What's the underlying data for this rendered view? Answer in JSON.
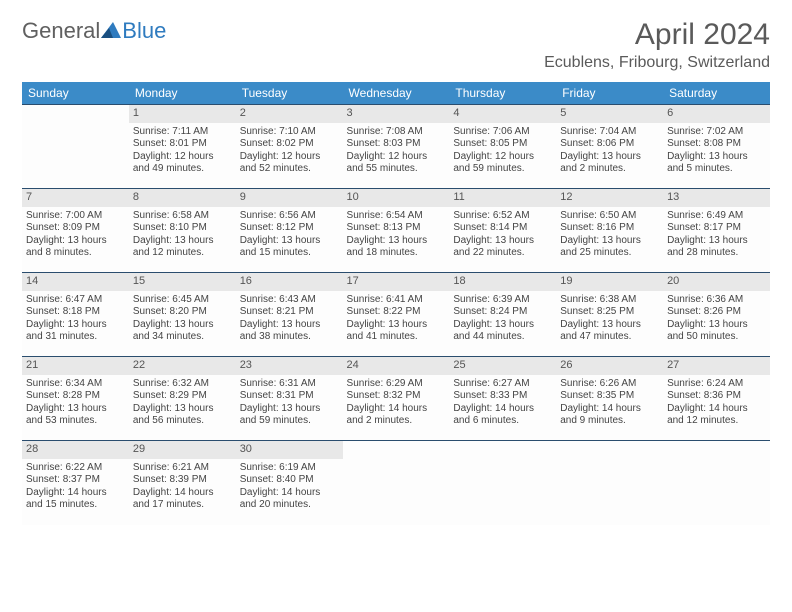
{
  "brand": {
    "general": "General",
    "blue": "Blue"
  },
  "title": "April 2024",
  "location": "Ecublens, Fribourg, Switzerland",
  "colors": {
    "header_bg": "#3b8bc8",
    "header_text": "#ffffff",
    "border": "#2a4d6e",
    "daynum_bg": "#e8e8e8",
    "text": "#444444",
    "logo_gray": "#606060",
    "logo_blue": "#2f7bbf"
  },
  "day_headers": [
    "Sunday",
    "Monday",
    "Tuesday",
    "Wednesday",
    "Thursday",
    "Friday",
    "Saturday"
  ],
  "weeks": [
    [
      {
        "n": "",
        "sr": "",
        "ss": "",
        "dl": ""
      },
      {
        "n": "1",
        "sr": "Sunrise: 7:11 AM",
        "ss": "Sunset: 8:01 PM",
        "dl": "Daylight: 12 hours and 49 minutes."
      },
      {
        "n": "2",
        "sr": "Sunrise: 7:10 AM",
        "ss": "Sunset: 8:02 PM",
        "dl": "Daylight: 12 hours and 52 minutes."
      },
      {
        "n": "3",
        "sr": "Sunrise: 7:08 AM",
        "ss": "Sunset: 8:03 PM",
        "dl": "Daylight: 12 hours and 55 minutes."
      },
      {
        "n": "4",
        "sr": "Sunrise: 7:06 AM",
        "ss": "Sunset: 8:05 PM",
        "dl": "Daylight: 12 hours and 59 minutes."
      },
      {
        "n": "5",
        "sr": "Sunrise: 7:04 AM",
        "ss": "Sunset: 8:06 PM",
        "dl": "Daylight: 13 hours and 2 minutes."
      },
      {
        "n": "6",
        "sr": "Sunrise: 7:02 AM",
        "ss": "Sunset: 8:08 PM",
        "dl": "Daylight: 13 hours and 5 minutes."
      }
    ],
    [
      {
        "n": "7",
        "sr": "Sunrise: 7:00 AM",
        "ss": "Sunset: 8:09 PM",
        "dl": "Daylight: 13 hours and 8 minutes."
      },
      {
        "n": "8",
        "sr": "Sunrise: 6:58 AM",
        "ss": "Sunset: 8:10 PM",
        "dl": "Daylight: 13 hours and 12 minutes."
      },
      {
        "n": "9",
        "sr": "Sunrise: 6:56 AM",
        "ss": "Sunset: 8:12 PM",
        "dl": "Daylight: 13 hours and 15 minutes."
      },
      {
        "n": "10",
        "sr": "Sunrise: 6:54 AM",
        "ss": "Sunset: 8:13 PM",
        "dl": "Daylight: 13 hours and 18 minutes."
      },
      {
        "n": "11",
        "sr": "Sunrise: 6:52 AM",
        "ss": "Sunset: 8:14 PM",
        "dl": "Daylight: 13 hours and 22 minutes."
      },
      {
        "n": "12",
        "sr": "Sunrise: 6:50 AM",
        "ss": "Sunset: 8:16 PM",
        "dl": "Daylight: 13 hours and 25 minutes."
      },
      {
        "n": "13",
        "sr": "Sunrise: 6:49 AM",
        "ss": "Sunset: 8:17 PM",
        "dl": "Daylight: 13 hours and 28 minutes."
      }
    ],
    [
      {
        "n": "14",
        "sr": "Sunrise: 6:47 AM",
        "ss": "Sunset: 8:18 PM",
        "dl": "Daylight: 13 hours and 31 minutes."
      },
      {
        "n": "15",
        "sr": "Sunrise: 6:45 AM",
        "ss": "Sunset: 8:20 PM",
        "dl": "Daylight: 13 hours and 34 minutes."
      },
      {
        "n": "16",
        "sr": "Sunrise: 6:43 AM",
        "ss": "Sunset: 8:21 PM",
        "dl": "Daylight: 13 hours and 38 minutes."
      },
      {
        "n": "17",
        "sr": "Sunrise: 6:41 AM",
        "ss": "Sunset: 8:22 PM",
        "dl": "Daylight: 13 hours and 41 minutes."
      },
      {
        "n": "18",
        "sr": "Sunrise: 6:39 AM",
        "ss": "Sunset: 8:24 PM",
        "dl": "Daylight: 13 hours and 44 minutes."
      },
      {
        "n": "19",
        "sr": "Sunrise: 6:38 AM",
        "ss": "Sunset: 8:25 PM",
        "dl": "Daylight: 13 hours and 47 minutes."
      },
      {
        "n": "20",
        "sr": "Sunrise: 6:36 AM",
        "ss": "Sunset: 8:26 PM",
        "dl": "Daylight: 13 hours and 50 minutes."
      }
    ],
    [
      {
        "n": "21",
        "sr": "Sunrise: 6:34 AM",
        "ss": "Sunset: 8:28 PM",
        "dl": "Daylight: 13 hours and 53 minutes."
      },
      {
        "n": "22",
        "sr": "Sunrise: 6:32 AM",
        "ss": "Sunset: 8:29 PM",
        "dl": "Daylight: 13 hours and 56 minutes."
      },
      {
        "n": "23",
        "sr": "Sunrise: 6:31 AM",
        "ss": "Sunset: 8:31 PM",
        "dl": "Daylight: 13 hours and 59 minutes."
      },
      {
        "n": "24",
        "sr": "Sunrise: 6:29 AM",
        "ss": "Sunset: 8:32 PM",
        "dl": "Daylight: 14 hours and 2 minutes."
      },
      {
        "n": "25",
        "sr": "Sunrise: 6:27 AM",
        "ss": "Sunset: 8:33 PM",
        "dl": "Daylight: 14 hours and 6 minutes."
      },
      {
        "n": "26",
        "sr": "Sunrise: 6:26 AM",
        "ss": "Sunset: 8:35 PM",
        "dl": "Daylight: 14 hours and 9 minutes."
      },
      {
        "n": "27",
        "sr": "Sunrise: 6:24 AM",
        "ss": "Sunset: 8:36 PM",
        "dl": "Daylight: 14 hours and 12 minutes."
      }
    ],
    [
      {
        "n": "28",
        "sr": "Sunrise: 6:22 AM",
        "ss": "Sunset: 8:37 PM",
        "dl": "Daylight: 14 hours and 15 minutes."
      },
      {
        "n": "29",
        "sr": "Sunrise: 6:21 AM",
        "ss": "Sunset: 8:39 PM",
        "dl": "Daylight: 14 hours and 17 minutes."
      },
      {
        "n": "30",
        "sr": "Sunrise: 6:19 AM",
        "ss": "Sunset: 8:40 PM",
        "dl": "Daylight: 14 hours and 20 minutes."
      },
      {
        "n": "",
        "sr": "",
        "ss": "",
        "dl": ""
      },
      {
        "n": "",
        "sr": "",
        "ss": "",
        "dl": ""
      },
      {
        "n": "",
        "sr": "",
        "ss": "",
        "dl": ""
      },
      {
        "n": "",
        "sr": "",
        "ss": "",
        "dl": ""
      }
    ]
  ]
}
